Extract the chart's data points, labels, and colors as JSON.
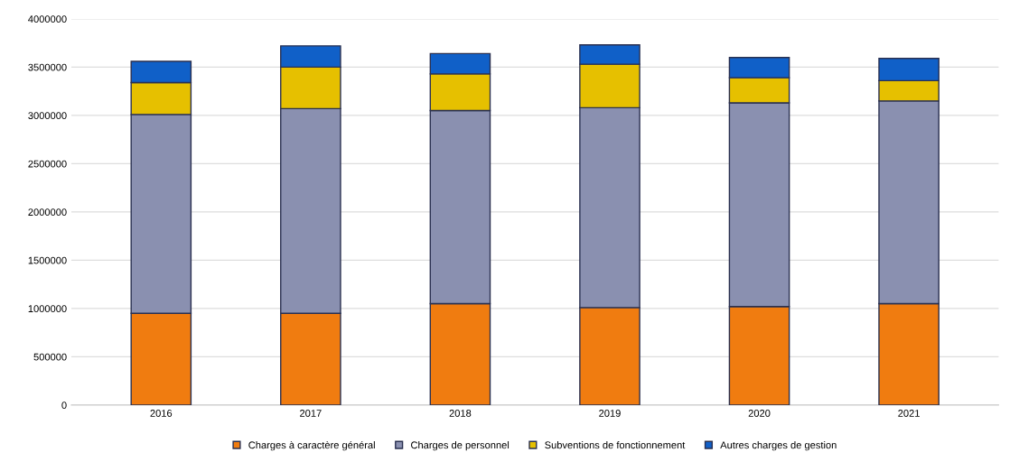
{
  "chart_data": {
    "type": "bar",
    "stacked": true,
    "categories": [
      "2016",
      "2017",
      "2018",
      "2019",
      "2020",
      "2021"
    ],
    "series": [
      {
        "name": "Charges à caractère général",
        "color": "#f07c10",
        "values": [
          950000,
          950000,
          1050000,
          1010000,
          1020000,
          1050000
        ]
      },
      {
        "name": "Charges de personnel",
        "color": "#8a90b0",
        "values": [
          2060000,
          2120000,
          2000000,
          2070000,
          2110000,
          2100000
        ]
      },
      {
        "name": "Subventions de fonctionnement",
        "color": "#e6c000",
        "values": [
          330000,
          430000,
          380000,
          450000,
          260000,
          210000
        ]
      },
      {
        "name": "Autres charges de gestion",
        "color": "#1060c8",
        "values": [
          220000,
          220000,
          210000,
          200000,
          210000,
          230000
        ]
      }
    ],
    "ylim": [
      0,
      4000000
    ],
    "yticks": [
      0,
      500000,
      1000000,
      1500000,
      2000000,
      2500000,
      3000000,
      3500000,
      4000000
    ],
    "grid": "y",
    "legend": "bottom"
  }
}
